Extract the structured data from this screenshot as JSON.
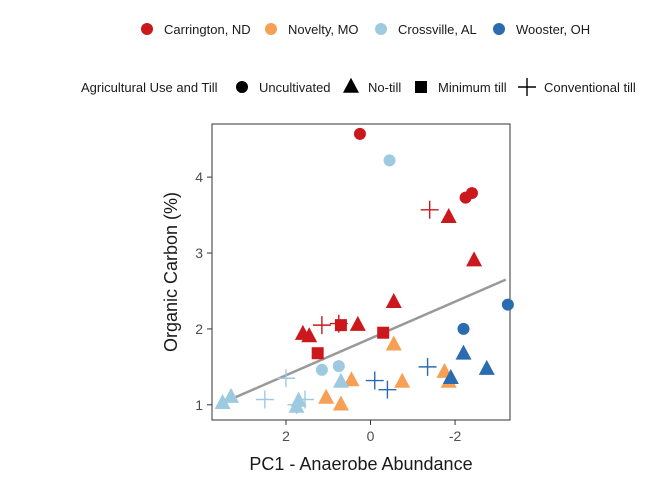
{
  "chart_data": {
    "type": "scatter",
    "xlabel": "PC1 - Anaerobe Abundance",
    "ylabel": "Organic Carbon (%)",
    "x_reversed": true,
    "xlim": [
      3.75,
      -3.3
    ],
    "ylim": [
      0.8,
      4.7
    ],
    "x_ticks": [
      2,
      0,
      -2
    ],
    "x_tick_labels": [
      "2",
      "0",
      "-2"
    ],
    "y_ticks": [
      1,
      2,
      3,
      4
    ],
    "y_tick_labels": [
      "1",
      "2",
      "3",
      "4"
    ],
    "grid": false,
    "colors": {
      "Carrington, ND": "#CB181D",
      "Novelty, MO": "#F5A054",
      "Crossville, AL": "#9ECAE1",
      "Wooster, OH": "#2B6CB0",
      "trend": "#999999",
      "panel_border": "#333333",
      "tick": "#333333"
    },
    "legend": {
      "position": "top",
      "site_entries": [
        "Carrington, ND",
        "Novelty, MO",
        "Crossville, AL",
        "Wooster, OH"
      ],
      "use_title": "Agricultural Use and Till",
      "use_entries": [
        {
          "label": "Uncultivated",
          "shape": "circle"
        },
        {
          "label": "No-till",
          "shape": "triangle"
        },
        {
          "label": "Minimum till",
          "shape": "square"
        },
        {
          "label": "Conventional till",
          "shape": "plus"
        }
      ]
    },
    "trend_line": {
      "x": [
        3.4,
        -3.2
      ],
      "y": [
        1.05,
        2.65
      ]
    },
    "points": [
      {
        "site": "Carrington, ND",
        "shape": "circle",
        "x": 0.25,
        "y": 4.57
      },
      {
        "site": "Carrington, ND",
        "shape": "circle",
        "x": -2.4,
        "y": 3.79
      },
      {
        "site": "Carrington, ND",
        "shape": "circle",
        "x": -2.25,
        "y": 3.73
      },
      {
        "site": "Carrington, ND",
        "shape": "triangle",
        "x": -1.85,
        "y": 3.47
      },
      {
        "site": "Carrington, ND",
        "shape": "triangle",
        "x": -2.45,
        "y": 2.9
      },
      {
        "site": "Carrington, ND",
        "shape": "triangle",
        "x": -0.55,
        "y": 2.35
      },
      {
        "site": "Carrington, ND",
        "shape": "triangle",
        "x": 0.3,
        "y": 2.05
      },
      {
        "site": "Carrington, ND",
        "shape": "triangle",
        "x": 1.6,
        "y": 1.93
      },
      {
        "site": "Carrington, ND",
        "shape": "triangle",
        "x": 1.45,
        "y": 1.9
      },
      {
        "site": "Carrington, ND",
        "shape": "square",
        "x": 0.7,
        "y": 2.05
      },
      {
        "site": "Carrington, ND",
        "shape": "square",
        "x": -0.3,
        "y": 1.95
      },
      {
        "site": "Carrington, ND",
        "shape": "square",
        "x": 1.25,
        "y": 1.68
      },
      {
        "site": "Carrington, ND",
        "shape": "plus",
        "x": -1.4,
        "y": 3.57
      },
      {
        "site": "Carrington, ND",
        "shape": "plus",
        "x": 1.15,
        "y": 2.05
      },
      {
        "site": "Carrington, ND",
        "shape": "plus",
        "x": 0.75,
        "y": 2.07
      },
      {
        "site": "Novelty, MO",
        "shape": "triangle",
        "x": -0.55,
        "y": 1.79
      },
      {
        "site": "Novelty, MO",
        "shape": "triangle",
        "x": 0.45,
        "y": 1.32
      },
      {
        "site": "Novelty, MO",
        "shape": "triangle",
        "x": -0.75,
        "y": 1.3
      },
      {
        "site": "Novelty, MO",
        "shape": "triangle",
        "x": -1.75,
        "y": 1.43
      },
      {
        "site": "Novelty, MO",
        "shape": "triangle",
        "x": -1.85,
        "y": 1.3
      },
      {
        "site": "Novelty, MO",
        "shape": "triangle",
        "x": 1.05,
        "y": 1.09
      },
      {
        "site": "Novelty, MO",
        "shape": "triangle",
        "x": 0.7,
        "y": 1.0
      },
      {
        "site": "Crossville, AL",
        "shape": "circle",
        "x": -0.45,
        "y": 4.22
      },
      {
        "site": "Crossville, AL",
        "shape": "circle",
        "x": 0.75,
        "y": 1.51
      },
      {
        "site": "Crossville, AL",
        "shape": "circle",
        "x": 1.15,
        "y": 1.46
      },
      {
        "site": "Crossville, AL",
        "shape": "triangle",
        "x": 0.7,
        "y": 1.3
      },
      {
        "site": "Crossville, AL",
        "shape": "triangle",
        "x": 3.3,
        "y": 1.1
      },
      {
        "site": "Crossville, AL",
        "shape": "triangle",
        "x": 3.5,
        "y": 1.02
      },
      {
        "site": "Crossville, AL",
        "shape": "triangle",
        "x": 1.7,
        "y": 1.05
      },
      {
        "site": "Crossville, AL",
        "shape": "triangle",
        "x": 1.75,
        "y": 0.97
      },
      {
        "site": "Crossville, AL",
        "shape": "plus",
        "x": 2.0,
        "y": 1.35
      },
      {
        "site": "Crossville, AL",
        "shape": "plus",
        "x": 2.5,
        "y": 1.07
      },
      {
        "site": "Crossville, AL",
        "shape": "plus",
        "x": 1.55,
        "y": 1.07
      },
      {
        "site": "Crossville, AL",
        "shape": "plus",
        "x": 1.75,
        "y": 1.0
      },
      {
        "site": "Wooster, OH",
        "shape": "circle",
        "x": -3.25,
        "y": 2.32
      },
      {
        "site": "Wooster, OH",
        "shape": "circle",
        "x": -2.2,
        "y": 2.0
      },
      {
        "site": "Wooster, OH",
        "shape": "triangle",
        "x": -2.2,
        "y": 1.67
      },
      {
        "site": "Wooster, OH",
        "shape": "triangle",
        "x": -2.75,
        "y": 1.47
      },
      {
        "site": "Wooster, OH",
        "shape": "triangle",
        "x": -1.9,
        "y": 1.35
      },
      {
        "site": "Wooster, OH",
        "shape": "plus",
        "x": -1.35,
        "y": 1.5
      },
      {
        "site": "Wooster, OH",
        "shape": "plus",
        "x": -0.1,
        "y": 1.32
      },
      {
        "site": "Wooster, OH",
        "shape": "plus",
        "x": -0.4,
        "y": 1.2
      }
    ]
  }
}
